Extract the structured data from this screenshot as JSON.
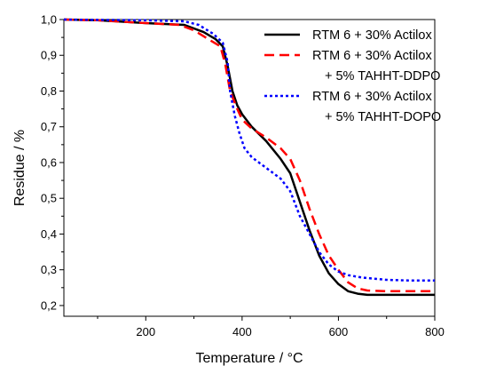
{
  "chart_data": {
    "type": "line",
    "title": "",
    "xlabel": "Temperature / °C",
    "ylabel": "Residue / %",
    "xlim": [
      30,
      800
    ],
    "ylim": [
      0.17,
      1.0
    ],
    "xticks": [
      200,
      400,
      600,
      800
    ],
    "xtick_labels": [
      "200",
      "400",
      "600",
      "800"
    ],
    "yticks": [
      0.2,
      0.3,
      0.4,
      0.5,
      0.6,
      0.7,
      0.8,
      0.9,
      1.0
    ],
    "ytick_labels": [
      "0,2",
      "0,3",
      "0,4",
      "0,5",
      "0,6",
      "0,7",
      "0,8",
      "0,9",
      "1,0"
    ],
    "grid": false,
    "legend_position": "top-right",
    "series": [
      {
        "name_lines": [
          "RTM 6 + 30% Actilox"
        ],
        "color": "#000000",
        "dash": "solid",
        "x": [
          30,
          100,
          200,
          280,
          320,
          345,
          360,
          370,
          380,
          390,
          400,
          420,
          450,
          480,
          500,
          520,
          540,
          560,
          580,
          600,
          620,
          640,
          660,
          700,
          750,
          800
        ],
        "y": [
          1.0,
          0.998,
          0.99,
          0.985,
          0.965,
          0.945,
          0.925,
          0.87,
          0.8,
          0.76,
          0.735,
          0.7,
          0.66,
          0.61,
          0.57,
          0.49,
          0.41,
          0.34,
          0.29,
          0.26,
          0.24,
          0.233,
          0.23,
          0.23,
          0.23,
          0.23
        ]
      },
      {
        "name_lines": [
          "RTM 6 + 30% Actilox",
          "+ 5% TAHHT-DDPO"
        ],
        "color": "#ff0000",
        "dash": "dashed",
        "x": [
          30,
          100,
          200,
          270,
          300,
          330,
          355,
          365,
          375,
          390,
          400,
          420,
          450,
          480,
          500,
          520,
          540,
          560,
          580,
          600,
          620,
          640,
          660,
          700,
          750,
          800
        ],
        "y": [
          1.0,
          0.998,
          0.99,
          0.985,
          0.97,
          0.945,
          0.925,
          0.875,
          0.8,
          0.75,
          0.72,
          0.695,
          0.67,
          0.64,
          0.61,
          0.55,
          0.47,
          0.4,
          0.34,
          0.3,
          0.265,
          0.248,
          0.242,
          0.24,
          0.24,
          0.24
        ]
      },
      {
        "name_lines": [
          "RTM 6 + 30% Actilox",
          "+ 5% TAHHT-DOPO"
        ],
        "color": "#0000ff",
        "dash": "dotted",
        "x": [
          30,
          100,
          200,
          280,
          310,
          340,
          360,
          370,
          375,
          385,
          395,
          405,
          420,
          450,
          480,
          500,
          520,
          540,
          560,
          580,
          600,
          620,
          650,
          700,
          750,
          800
        ],
        "y": [
          1.0,
          0.999,
          0.998,
          0.995,
          0.985,
          0.96,
          0.935,
          0.88,
          0.8,
          0.73,
          0.68,
          0.64,
          0.615,
          0.585,
          0.555,
          0.52,
          0.45,
          0.4,
          0.35,
          0.315,
          0.295,
          0.285,
          0.278,
          0.272,
          0.27,
          0.27
        ]
      }
    ]
  }
}
